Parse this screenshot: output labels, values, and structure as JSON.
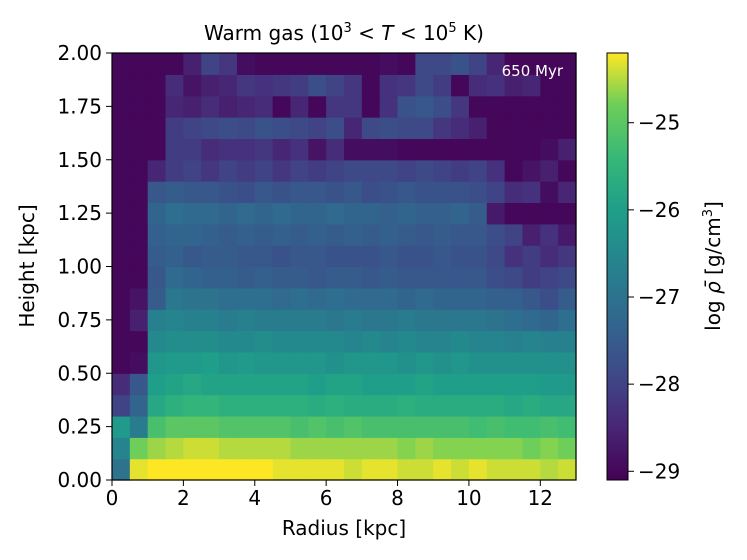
{
  "chart_data": {
    "type": "heatmap",
    "title": {
      "prefix": "Warm gas (10",
      "exp1": "3",
      "mid1": " < ",
      "var": "T",
      "mid2": " < 10",
      "exp2": "5",
      "suffix": " K)"
    },
    "annotation": "650 Myr",
    "xlabel": "Radius [kpc]",
    "ylabel": "Height [kpc]",
    "colorbar_label": {
      "prefix": "log ",
      "symbol": "ρ̄",
      "unit_start": " [g/cm",
      "unit_exp": "3",
      "unit_end": "]"
    },
    "xlim": [
      0,
      13
    ],
    "ylim": [
      0,
      2.0
    ],
    "clim": [
      -29.1,
      -24.2
    ],
    "colormap": "viridis",
    "x_ticks": [
      "0",
      "2",
      "4",
      "6",
      "8",
      "10",
      "12"
    ],
    "y_ticks": [
      "0.00",
      "0.25",
      "0.50",
      "0.75",
      "1.00",
      "1.25",
      "1.50",
      "1.75",
      "2.00"
    ],
    "colorbar_ticks": [
      "−25",
      "−26",
      "−27",
      "−28",
      "−29"
    ],
    "grid": false,
    "nx": 26,
    "ny": 20,
    "values": [
      [
        -27.0,
        -24.3,
        -24.2,
        -24.2,
        -24.2,
        -24.2,
        -24.2,
        -24.2,
        -24.2,
        -24.3,
        -24.3,
        -24.3,
        -24.3,
        -24.4,
        -24.3,
        -24.3,
        -24.4,
        -24.4,
        -24.3,
        -24.4,
        -24.3,
        -24.4,
        -24.4,
        -24.4,
        -24.5,
        -24.4
      ],
      [
        -26.6,
        -24.8,
        -24.6,
        -24.5,
        -24.4,
        -24.4,
        -24.5,
        -24.5,
        -24.5,
        -24.5,
        -24.6,
        -24.6,
        -24.6,
        -24.6,
        -24.6,
        -24.6,
        -24.7,
        -24.6,
        -24.7,
        -24.7,
        -24.7,
        -24.7,
        -24.7,
        -24.8,
        -24.7,
        -24.8
      ],
      [
        -26.1,
        -26.8,
        -25.2,
        -25.0,
        -25.0,
        -25.0,
        -25.1,
        -25.1,
        -25.1,
        -25.1,
        -25.2,
        -25.1,
        -25.2,
        -25.1,
        -25.2,
        -25.2,
        -25.2,
        -25.2,
        -25.2,
        -25.2,
        -25.3,
        -25.2,
        -25.3,
        -25.3,
        -25.2,
        -25.3
      ],
      [
        -28.0,
        -27.3,
        -25.8,
        -25.6,
        -25.5,
        -25.5,
        -25.6,
        -25.6,
        -25.6,
        -25.6,
        -25.6,
        -25.7,
        -25.6,
        -25.7,
        -25.7,
        -25.7,
        -25.6,
        -25.7,
        -25.7,
        -25.7,
        -25.7,
        -25.7,
        -25.8,
        -25.7,
        -25.8,
        -25.8
      ],
      [
        -28.4,
        -27.6,
        -26.0,
        -25.9,
        -25.8,
        -25.9,
        -25.9,
        -25.9,
        -25.9,
        -25.9,
        -25.9,
        -26.0,
        -25.9,
        -25.9,
        -26.0,
        -26.0,
        -26.0,
        -25.9,
        -26.0,
        -26.0,
        -26.0,
        -26.0,
        -26.0,
        -26.0,
        -26.1,
        -26.1
      ],
      [
        -29.0,
        -28.9,
        -26.2,
        -26.1,
        -26.1,
        -26.0,
        -26.2,
        -26.1,
        -26.2,
        -26.2,
        -26.2,
        -26.2,
        -26.3,
        -26.2,
        -26.2,
        -26.2,
        -26.3,
        -26.2,
        -26.3,
        -26.2,
        -26.3,
        -26.3,
        -26.3,
        -26.3,
        -26.3,
        -26.3
      ],
      [
        -29.0,
        -29.0,
        -26.5,
        -26.4,
        -26.4,
        -26.4,
        -26.5,
        -26.5,
        -26.4,
        -26.5,
        -26.5,
        -26.5,
        -26.5,
        -26.6,
        -26.5,
        -26.6,
        -26.5,
        -26.6,
        -26.6,
        -26.5,
        -26.6,
        -26.6,
        -26.7,
        -26.6,
        -26.7,
        -26.7
      ],
      [
        -29.0,
        -28.6,
        -26.7,
        -26.6,
        -26.7,
        -26.7,
        -26.8,
        -26.7,
        -26.8,
        -26.8,
        -26.8,
        -26.8,
        -26.9,
        -26.8,
        -26.9,
        -26.9,
        -26.8,
        -26.9,
        -26.9,
        -26.9,
        -26.9,
        -27.0,
        -27.1,
        -27.2,
        -27.3,
        -27.1
      ],
      [
        -29.0,
        -28.8,
        -27.5,
        -26.9,
        -27.0,
        -27.0,
        -27.1,
        -27.1,
        -27.1,
        -27.2,
        -27.1,
        -27.2,
        -27.1,
        -27.2,
        -27.2,
        -27.2,
        -27.3,
        -27.2,
        -27.3,
        -27.3,
        -27.3,
        -27.4,
        -27.4,
        -27.6,
        -27.8,
        -27.5
      ],
      [
        -29.0,
        -29.0,
        -27.6,
        -27.2,
        -27.3,
        -27.4,
        -27.4,
        -27.5,
        -27.4,
        -27.5,
        -27.5,
        -27.6,
        -27.5,
        -27.5,
        -27.6,
        -27.5,
        -27.6,
        -27.6,
        -27.6,
        -27.6,
        -27.6,
        -27.8,
        -27.9,
        -28.1,
        -28.0,
        -27.9
      ],
      [
        -29.0,
        -29.0,
        -27.5,
        -27.4,
        -27.6,
        -27.5,
        -27.5,
        -27.6,
        -27.6,
        -27.7,
        -27.6,
        -27.6,
        -27.7,
        -27.7,
        -27.7,
        -27.6,
        -27.7,
        -27.7,
        -27.6,
        -27.7,
        -27.7,
        -27.9,
        -28.3,
        -28.1,
        -28.4,
        -28.2
      ],
      [
        -29.0,
        -29.0,
        -27.4,
        -27.3,
        -27.3,
        -27.4,
        -27.5,
        -27.4,
        -27.5,
        -27.4,
        -27.5,
        -27.4,
        -27.5,
        -27.4,
        -27.5,
        -27.4,
        -27.5,
        -27.6,
        -27.5,
        -27.6,
        -27.6,
        -27.8,
        -28.0,
        -28.6,
        -28.3,
        -28.7
      ],
      [
        -29.0,
        -29.0,
        -27.3,
        -27.1,
        -27.2,
        -27.2,
        -27.3,
        -27.2,
        -27.3,
        -27.2,
        -27.3,
        -27.3,
        -27.2,
        -27.3,
        -27.3,
        -27.4,
        -27.3,
        -27.4,
        -27.4,
        -27.3,
        -27.5,
        -28.7,
        -29.0,
        -29.0,
        -29.0,
        -29.0
      ],
      [
        -29.0,
        -29.0,
        -27.6,
        -27.5,
        -27.6,
        -27.6,
        -27.7,
        -27.8,
        -27.6,
        -27.7,
        -27.6,
        -27.6,
        -27.7,
        -27.6,
        -27.8,
        -27.7,
        -27.6,
        -27.7,
        -27.7,
        -27.7,
        -27.8,
        -28.0,
        -28.4,
        -28.3,
        -28.9,
        -28.5
      ],
      [
        -29.0,
        -29.0,
        -28.5,
        -28.1,
        -28.0,
        -28.2,
        -28.0,
        -28.1,
        -28.0,
        -28.2,
        -28.0,
        -28.1,
        -28.0,
        -27.9,
        -27.9,
        -27.9,
        -28.0,
        -27.9,
        -28.0,
        -28.1,
        -28.0,
        -28.3,
        -29.0,
        -28.8,
        -28.6,
        -29.0
      ],
      [
        -29.0,
        -29.0,
        -29.0,
        -28.1,
        -28.1,
        -28.4,
        -28.3,
        -28.3,
        -28.2,
        -28.5,
        -28.3,
        -28.8,
        -28.4,
        -28.9,
        -28.9,
        -28.9,
        -29.0,
        -29.0,
        -29.0,
        -29.0,
        -29.0,
        -29.0,
        -29.0,
        -29.0,
        -28.9,
        -28.6
      ],
      [
        -29.0,
        -29.0,
        -29.0,
        -28.1,
        -28.0,
        -27.9,
        -27.8,
        -27.9,
        -27.7,
        -27.8,
        -27.9,
        -28.0,
        -27.8,
        -28.5,
        -27.9,
        -27.8,
        -27.9,
        -27.9,
        -28.2,
        -28.4,
        -28.6,
        -29.0,
        -29.0,
        -29.0,
        -29.0,
        -29.0
      ],
      [
        -29.0,
        -29.0,
        -29.0,
        -28.5,
        -28.6,
        -28.4,
        -28.6,
        -28.5,
        -28.4,
        -29.0,
        -28.5,
        -29.0,
        -28.2,
        -28.2,
        -29.0,
        -28.3,
        -27.7,
        -27.6,
        -27.8,
        -28.2,
        -29.0,
        -29.0,
        -29.0,
        -29.0,
        -29.0,
        -29.0
      ],
      [
        -29.0,
        -29.0,
        -29.0,
        -28.4,
        -28.8,
        -28.6,
        -28.5,
        -28.2,
        -28.3,
        -28.2,
        -28.1,
        -27.8,
        -28.0,
        -28.2,
        -29.0,
        -28.3,
        -28.2,
        -27.9,
        -28.1,
        -29.0,
        -28.4,
        -28.3,
        -28.6,
        -28.5,
        -29.0,
        -29.0
      ],
      [
        -29.0,
        -29.0,
        -29.0,
        -29.0,
        -28.6,
        -28.0,
        -28.2,
        -28.9,
        -29.0,
        -29.0,
        -29.0,
        -29.0,
        -29.0,
        -29.0,
        -29.0,
        -28.9,
        -29.0,
        -27.9,
        -27.9,
        -27.7,
        -28.0,
        -28.5,
        -29.0,
        -29.0,
        -29.0,
        -29.0
      ]
    ]
  }
}
